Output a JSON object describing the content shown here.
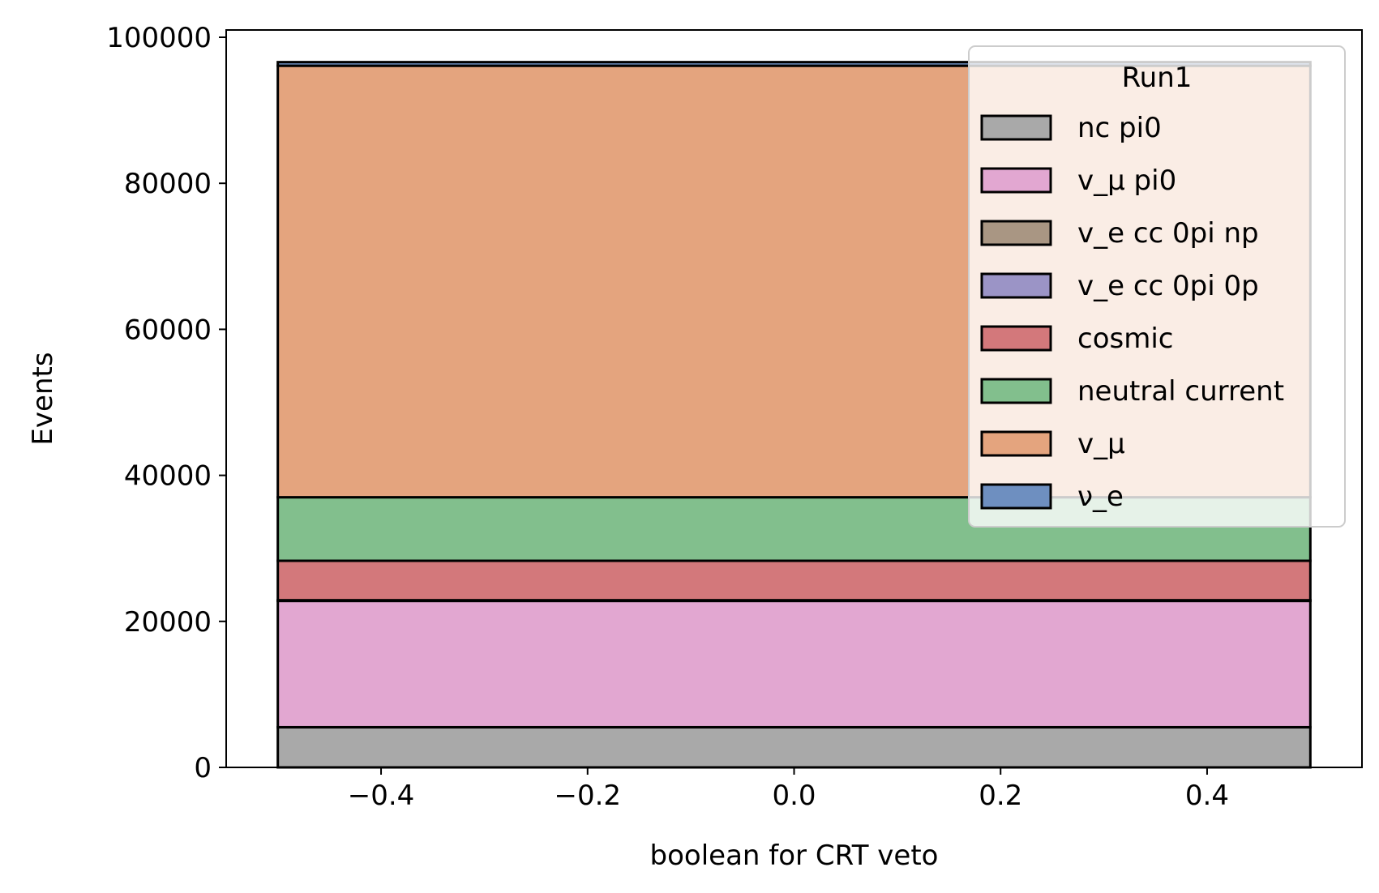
{
  "chart_data": {
    "type": "bar",
    "stacked": true,
    "xlabel": "boolean for CRT veto",
    "ylabel": "Events",
    "xlim": [
      -0.55,
      0.55
    ],
    "ylim": [
      0,
      101000
    ],
    "bin": [
      -0.5,
      0.5
    ],
    "xticks": [
      -0.4,
      -0.2,
      0.0,
      0.2,
      0.4
    ],
    "xtick_labels": [
      "−0.4",
      "−0.2",
      "0.0",
      "0.2",
      "0.4"
    ],
    "yticks": [
      0,
      20000,
      40000,
      60000,
      80000,
      100000
    ],
    "ytick_labels": [
      "0",
      "20000",
      "40000",
      "60000",
      "80000",
      "100000"
    ],
    "legend": {
      "title": "Run1",
      "placement": "top-right"
    },
    "series": [
      {
        "name": "nc pi0",
        "value": 5500,
        "color": "#a9a9a9"
      },
      {
        "name": "v_μ pi0",
        "value": 17300,
        "color": "#e2a7d1"
      },
      {
        "name": "v_e cc 0pi np",
        "value": 50,
        "color": "#a99683"
      },
      {
        "name": "v_e cc 0pi 0p",
        "value": 50,
        "color": "#9b94c6"
      },
      {
        "name": "cosmic",
        "value": 5400,
        "color": "#d3787b"
      },
      {
        "name": "neutral current",
        "value": 8700,
        "color": "#82bf8d"
      },
      {
        "name": "v_μ",
        "value": 59100,
        "color": "#e4a47e"
      },
      {
        "name": "ν_e",
        "value": 500,
        "color": "#6e8fc0"
      }
    ]
  }
}
